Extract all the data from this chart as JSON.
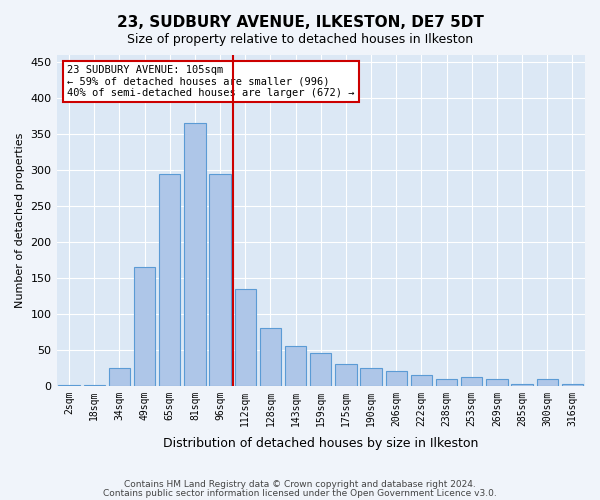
{
  "title": "23, SUDBURY AVENUE, ILKESTON, DE7 5DT",
  "subtitle": "Size of property relative to detached houses in Ilkeston",
  "xlabel": "Distribution of detached houses by size in Ilkeston",
  "ylabel": "Number of detached properties",
  "bin_labels": [
    "2sqm",
    "18sqm",
    "34sqm",
    "49sqm",
    "65sqm",
    "81sqm",
    "96sqm",
    "112sqm",
    "128sqm",
    "143sqm",
    "159sqm",
    "175sqm",
    "190sqm",
    "206sqm",
    "222sqm",
    "238sqm",
    "253sqm",
    "269sqm",
    "285sqm",
    "300sqm",
    "316sqm"
  ],
  "bar_heights": [
    1,
    1,
    25,
    165,
    295,
    365,
    295,
    135,
    80,
    55,
    45,
    30,
    25,
    20,
    15,
    10,
    12,
    10,
    3,
    10,
    3
  ],
  "bar_color": "#aec6e8",
  "bar_edge_color": "#5b9bd5",
  "vline_x_index": 6,
  "vline_color": "#cc0000",
  "annotation_line1": "23 SUDBURY AVENUE: 105sqm",
  "annotation_line2": "← 59% of detached houses are smaller (996)",
  "annotation_line3": "40% of semi-detached houses are larger (672) →",
  "annotation_box_color": "#ffffff",
  "annotation_box_edge": "#cc0000",
  "ylim": [
    0,
    460
  ],
  "yticks": [
    0,
    50,
    100,
    150,
    200,
    250,
    300,
    350,
    400,
    450
  ],
  "footer1": "Contains HM Land Registry data © Crown copyright and database right 2024.",
  "footer2": "Contains public sector information licensed under the Open Government Licence v3.0.",
  "bg_color": "#f0f4fa",
  "plot_bg_color": "#dce8f5"
}
